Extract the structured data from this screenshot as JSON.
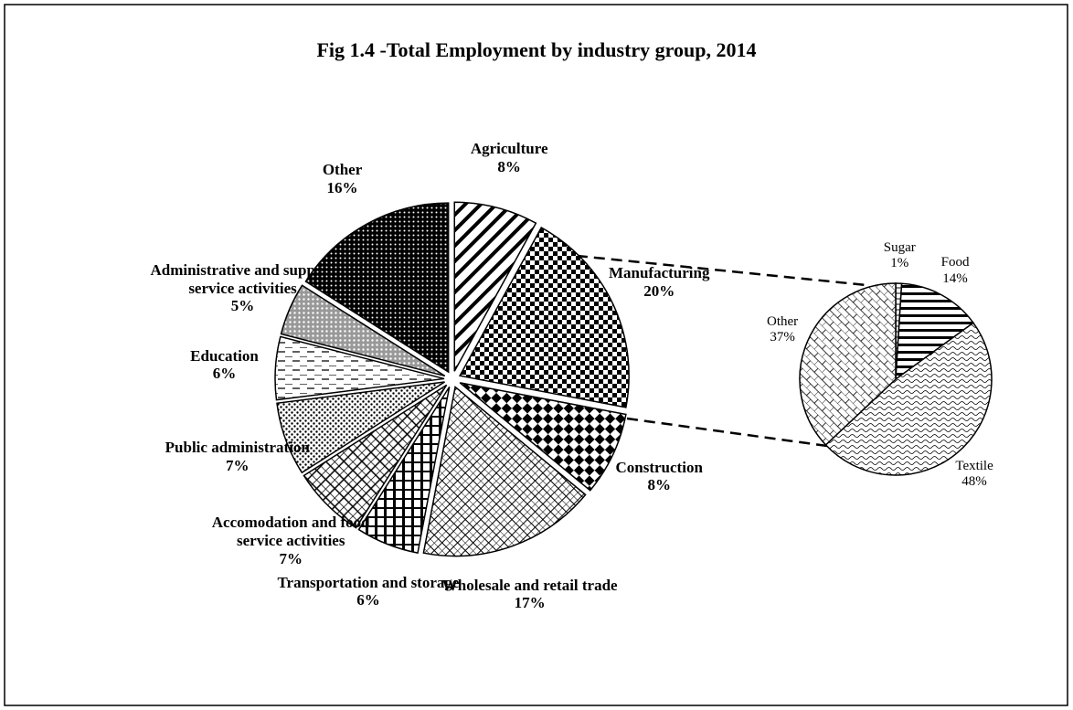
{
  "chart_data": [
    {
      "type": "pie",
      "title": "Fig 1.4 -Total Employment by industry group, 2014",
      "categories": [
        "Agriculture",
        "Manufacturing",
        "Construction",
        "Wholesale and retail trade",
        "Transportation and storage",
        "Accomodation and food service activities",
        "Public administration",
        "Education",
        "Administrative and support service activities",
        "Other"
      ],
      "values": [
        8,
        20,
        8,
        17,
        6,
        7,
        7,
        6,
        5,
        16
      ],
      "value_labels": [
        "8%",
        "20%",
        "8%",
        "17%",
        "6%",
        "7%",
        "7%",
        "6%",
        "5%",
        "16%"
      ]
    },
    {
      "type": "pie",
      "categories": [
        "Sugar",
        "Food",
        "Textile",
        "Other"
      ],
      "values": [
        1,
        14,
        48,
        37
      ],
      "value_labels": [
        "1%",
        "14%",
        "48%",
        "37%"
      ]
    }
  ]
}
